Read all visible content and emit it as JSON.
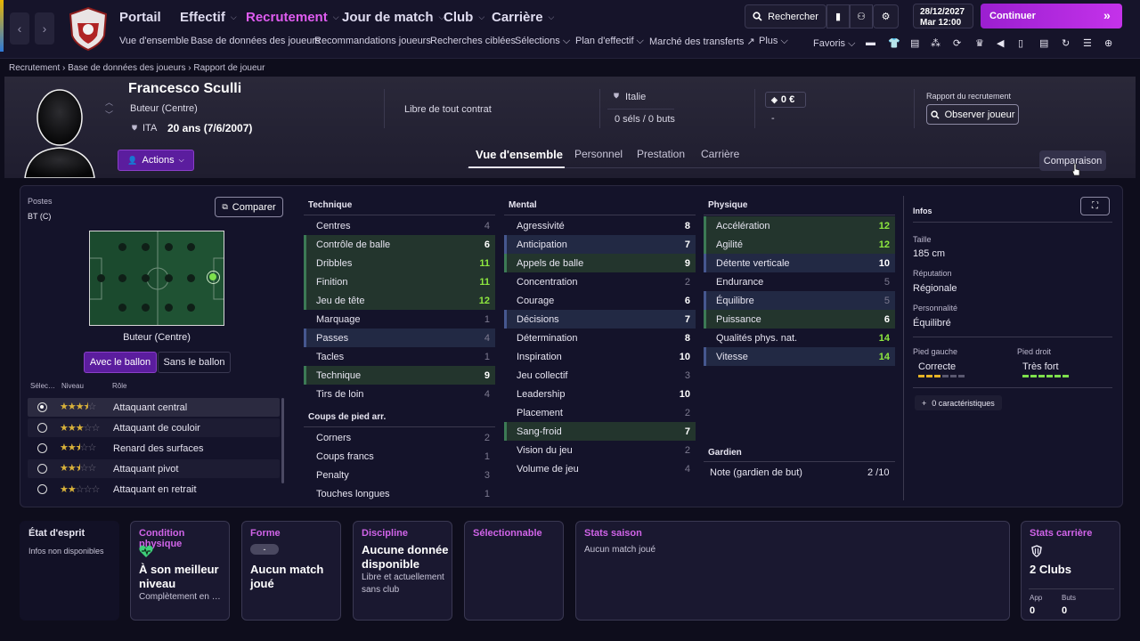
{
  "nav": {
    "main": [
      {
        "label": "Portail"
      },
      {
        "label": "Effectif"
      },
      {
        "label": "Recrutement"
      },
      {
        "label": "Jour de match"
      },
      {
        "label": "Club"
      },
      {
        "label": "Carrière"
      }
    ],
    "sub": {
      "vue": "Vue d'ensemble",
      "base": "Base de données des joueurs",
      "reco": "Recommandations joueurs",
      "recherches": "Recherches ciblées",
      "selections": "Sélections",
      "plan": "Plan d'effectif",
      "marche": "Marché des transferts",
      "plus": "Plus"
    },
    "search_label": "Rechercher",
    "favoris_label": "Favoris",
    "date_line1": "28/12/2027",
    "date_line2": "Mar 12:00",
    "continue_label": "Continuer"
  },
  "breadcrumb": [
    "Recrutement",
    "Base de données des joueurs",
    "Rapport de joueur"
  ],
  "player": {
    "name": "Francesco Sculli",
    "position": "Buteur (Centre)",
    "nationality": "ITA",
    "age": "20 ans (7/6/2007)",
    "contract": "Libre de tout contrat",
    "country": "Italie",
    "caps": "0 séls / 0 buts",
    "value": "0 €",
    "value_sub": "-",
    "report_label": "Rapport du recrutement",
    "observe_label": "Observer joueur",
    "actions_label": "Actions"
  },
  "tabs": [
    "Vue d'ensemble",
    "Personnel",
    "Prestation",
    "Carrière"
  ],
  "comparaison_label": "Comparaison",
  "positions": {
    "title": "Postes",
    "value": "BT (C)",
    "compare_label": "Comparer",
    "pitch_caption": "Buteur (Centre)",
    "with_ball": "Avec le ballon",
    "without_ball": "Sans le ballon",
    "col_sel": "Sélec…",
    "col_level": "Niveau",
    "col_role": "Rôle",
    "roles": [
      {
        "name": "Attaquant central",
        "stars": 3.5,
        "selected": true
      },
      {
        "name": "Attaquant de couloir",
        "stars": 3,
        "selected": false
      },
      {
        "name": "Renard des surfaces",
        "stars": 2.5,
        "selected": false
      },
      {
        "name": "Attaquant pivot",
        "stars": 2.5,
        "selected": false
      },
      {
        "name": "Attaquant en retrait",
        "stars": 2,
        "selected": false
      }
    ]
  },
  "attributes": {
    "technique_title": "Technique",
    "technique": [
      {
        "name": "Centres",
        "value": "4"
      },
      {
        "name": "Contrôle de balle",
        "value": "6"
      },
      {
        "name": "Dribbles",
        "value": "11"
      },
      {
        "name": "Finition",
        "value": "11"
      },
      {
        "name": "Jeu de tête",
        "value": "12"
      },
      {
        "name": "Marquage",
        "value": "1"
      },
      {
        "name": "Passes",
        "value": "4"
      },
      {
        "name": "Tacles",
        "value": "1"
      },
      {
        "name": "Technique",
        "value": "9"
      },
      {
        "name": "Tirs de loin",
        "value": "4"
      }
    ],
    "set_pieces_title": "Coups de pied arr.",
    "set_pieces": [
      {
        "name": "Corners",
        "value": "2"
      },
      {
        "name": "Coups francs",
        "value": "1"
      },
      {
        "name": "Penalty",
        "value": "3"
      },
      {
        "name": "Touches longues",
        "value": "1"
      }
    ],
    "mental_title": "Mental",
    "mental": [
      {
        "name": "Agressivité",
        "value": "8"
      },
      {
        "name": "Anticipation",
        "value": "7"
      },
      {
        "name": "Appels de balle",
        "value": "9"
      },
      {
        "name": "Concentration",
        "value": "2"
      },
      {
        "name": "Courage",
        "value": "6"
      },
      {
        "name": "Décisions",
        "value": "7"
      },
      {
        "name": "Détermination",
        "value": "8"
      },
      {
        "name": "Inspiration",
        "value": "10"
      },
      {
        "name": "Jeu collectif",
        "value": "3"
      },
      {
        "name": "Leadership",
        "value": "10"
      },
      {
        "name": "Placement",
        "value": "2"
      },
      {
        "name": "Sang-froid",
        "value": "7"
      },
      {
        "name": "Vision du jeu",
        "value": "2"
      },
      {
        "name": "Volume de jeu",
        "value": "4"
      }
    ],
    "physical_title": "Physique",
    "physical": [
      {
        "name": "Accélération",
        "value": "12"
      },
      {
        "name": "Agilité",
        "value": "12"
      },
      {
        "name": "Détente verticale",
        "value": "10"
      },
      {
        "name": "Endurance",
        "value": "5"
      },
      {
        "name": "Équilibre",
        "value": "5"
      },
      {
        "name": "Puissance",
        "value": "6"
      },
      {
        "name": "Qualités phys. nat.",
        "value": "14"
      },
      {
        "name": "Vitesse",
        "value": "14"
      }
    ],
    "goalkeeper_title": "Gardien",
    "goalkeeper_label": "Note (gardien de but)",
    "goalkeeper_value": "2 /10"
  },
  "infos": {
    "title": "Infos",
    "height_label": "Taille",
    "height": "185 cm",
    "reputation_label": "Réputation",
    "reputation": "Régionale",
    "personality_label": "Personnalité",
    "personality": "Équilibré",
    "left_foot_label": "Pied gauche",
    "left_foot": "Correcte",
    "right_foot_label": "Pied droit",
    "right_foot": "Très fort",
    "traits": "0 caractéristiques"
  },
  "cards": {
    "mood_title": "État d'esprit",
    "mood_text": "Infos non disponibles",
    "condition_title": "Condition physique",
    "condition_big": "À son meilleur niveau",
    "condition_small": "Complètement en …",
    "form_title": "Forme",
    "form_badge": "-",
    "form_big": "Aucun match joué",
    "discipline_title": "Discipline",
    "discipline_big": "Aucune donnée disponible",
    "discipline_small": "Libre et actuellement sans club",
    "selectable_title": "Sélectionnable",
    "season_title": "Stats saison",
    "season_text": "Aucun match joué",
    "career_title": "Stats carrière",
    "career_big": "2 Clubs",
    "career_app_label": "App",
    "career_goals_label": "Buts",
    "career_app": "0",
    "career_goals": "0"
  },
  "colors": {
    "accent": "#df5cf0",
    "good": "#8ee83f",
    "button": "#5b1d9e"
  }
}
